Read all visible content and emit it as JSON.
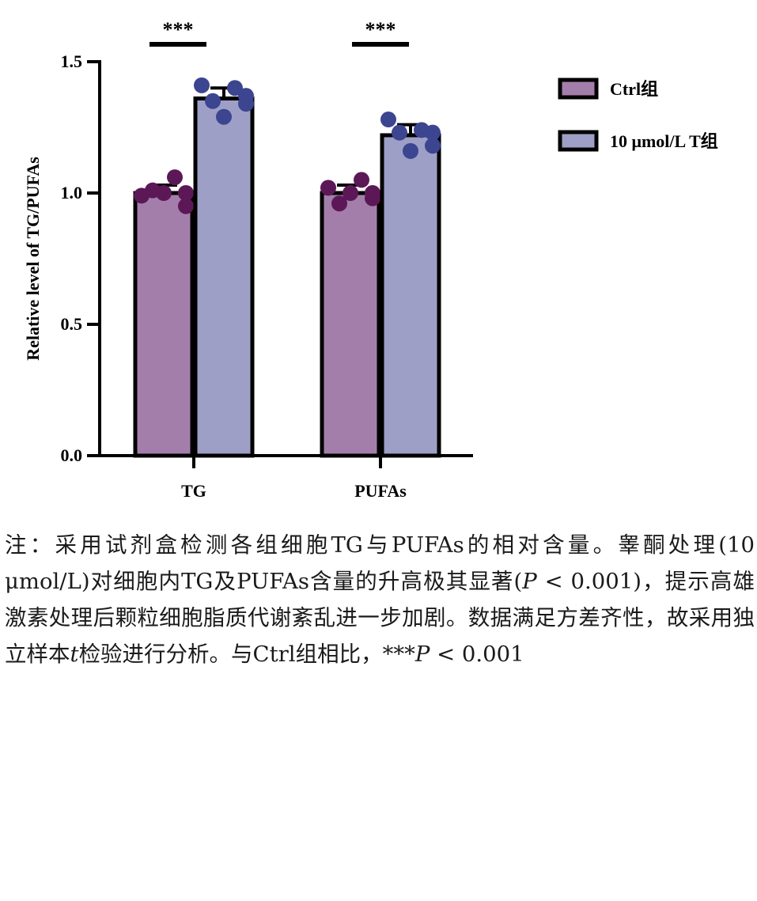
{
  "chart_data": {
    "type": "bar",
    "categories": [
      "TG",
      "PUFAs"
    ],
    "ylabel": "Relative level of TG/PUFAs",
    "xlabel": "",
    "ylim": [
      0,
      1.5
    ],
    "yticks": [
      "0.0",
      "0.5",
      "1.0",
      "1.5"
    ],
    "legend_position": "top-right",
    "series": [
      {
        "name": "Ctrl组",
        "color": "#a47eaa",
        "values": [
          1.0,
          1.0
        ],
        "errors": [
          0.03,
          0.03
        ],
        "points": [
          [
            0.99,
            1.01,
            1.0,
            1.06,
            1.0,
            0.95
          ],
          [
            1.02,
            0.96,
            1.0,
            1.05,
            0.98,
            1.0
          ]
        ]
      },
      {
        "name": "10 μmol/L T组",
        "color": "#9e9fc6",
        "values": [
          1.36,
          1.22
        ],
        "errors": [
          0.04,
          0.04
        ],
        "points": [
          [
            1.41,
            1.35,
            1.29,
            1.4,
            1.34,
            1.37
          ],
          [
            1.28,
            1.23,
            1.16,
            1.24,
            1.18,
            1.23
          ]
        ]
      }
    ],
    "dot_colors": [
      "#5c1856",
      "#3c4590"
    ],
    "significance": [
      {
        "category": "TG",
        "label": "***"
      },
      {
        "category": "PUFAs",
        "label": "***"
      }
    ]
  },
  "note": {
    "prefix": "注：采用试剂盒检测各组细胞TG与PUFAs的相对含量。睾酮处理(10 μmol/L)对细胞内TG及PUFAs含量的升高极其显著(",
    "p1": "P",
    "mid1": " < 0.001)，提示高雄激素处理后颗粒细胞脂质代谢紊乱进一步加剧。数据满足方差齐性，故采用独立样本",
    "t": "t",
    "mid2": "检验进行分析。与Ctrl组相比，***",
    "p2": "P",
    "suffix": " < 0.001"
  }
}
